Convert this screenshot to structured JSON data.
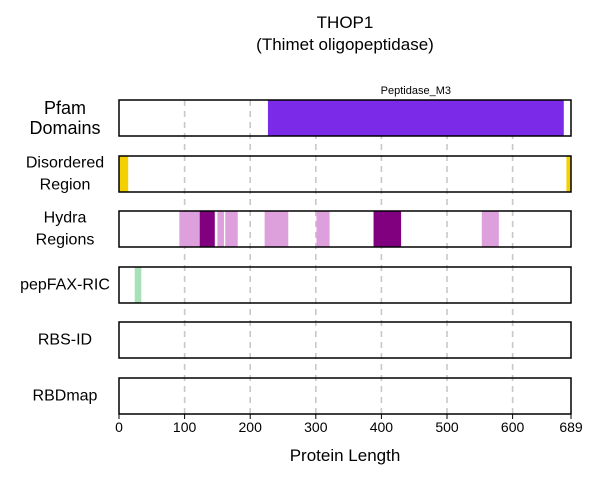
{
  "chart_data": {
    "type": "bar",
    "title": "THOP1",
    "subtitle": "(Thimet oligopeptidase)",
    "xlabel": "Protein Length",
    "xlim": [
      0,
      689
    ],
    "xticks": [
      0,
      100,
      200,
      300,
      400,
      500,
      600,
      689
    ],
    "grid": "vertical dashed at 100, 200, 300, 400, 500, 600",
    "tracks": [
      {
        "label_lines": [
          "Pfam",
          "Domains"
        ],
        "segments": [
          {
            "start": 227,
            "end": 678,
            "color": "#7b2be8",
            "label": "Peptidase_M3"
          }
        ]
      },
      {
        "label_lines": [
          "Disordered",
          "Region"
        ],
        "segments": [
          {
            "start": 0,
            "end": 14,
            "color": "#f4d000"
          },
          {
            "start": 682,
            "end": 689,
            "color": "#f4d000"
          }
        ]
      },
      {
        "label_lines": [
          "Hydra",
          "Regions"
        ],
        "segments": [
          {
            "start": 92,
            "end": 123,
            "color": "#dda0dd"
          },
          {
            "start": 123,
            "end": 146,
            "color": "#800080"
          },
          {
            "start": 150,
            "end": 160,
            "color": "#dda0dd"
          },
          {
            "start": 162,
            "end": 181,
            "color": "#dda0dd"
          },
          {
            "start": 222,
            "end": 258,
            "color": "#dda0dd"
          },
          {
            "start": 301,
            "end": 321,
            "color": "#dda0dd"
          },
          {
            "start": 388,
            "end": 430,
            "color": "#800080"
          },
          {
            "start": 553,
            "end": 579,
            "color": "#dda0dd"
          }
        ]
      },
      {
        "label_lines": [
          "pepFAX-RIC"
        ],
        "segments": [
          {
            "start": 24,
            "end": 34,
            "color": "#a8e0b8"
          }
        ]
      },
      {
        "label_lines": [
          "RBS-ID"
        ],
        "segments": []
      },
      {
        "label_lines": [
          "RBDmap"
        ],
        "segments": []
      }
    ]
  }
}
